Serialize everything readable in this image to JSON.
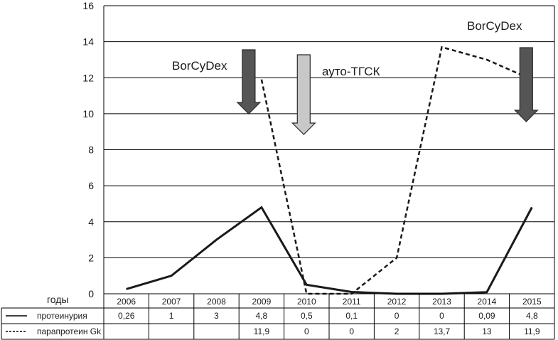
{
  "chart_data": {
    "type": "line",
    "title": "",
    "xlabel": "годы",
    "ylabel": "",
    "ylim": [
      0,
      16
    ],
    "yticks": [
      "0",
      "2",
      "4",
      "6",
      "8",
      "10",
      "12",
      "14",
      "16"
    ],
    "grid": true,
    "categories": [
      "2006",
      "2007",
      "2008",
      "2009",
      "2010",
      "2011",
      "2012",
      "2013",
      "2014",
      "2015"
    ],
    "series": [
      {
        "name": "протеинурия",
        "style": "solid",
        "values": [
          0.26,
          1,
          3,
          4.8,
          0.5,
          0.1,
          0,
          0,
          0.09,
          4.8
        ],
        "labels": [
          "0,26",
          "1",
          "3",
          "4,8",
          "0,5",
          "0,1",
          "0",
          "0",
          "0,09",
          "4,8"
        ]
      },
      {
        "name": "парапротеин Gk",
        "style": "dashed",
        "values": [
          null,
          null,
          null,
          11.9,
          0,
          0,
          2,
          13.7,
          13,
          11.9
        ],
        "labels": [
          "",
          "",
          "",
          "11,9",
          "0",
          "0",
          "2",
          "13,7",
          "13",
          "11,9"
        ]
      }
    ],
    "annotations": [
      {
        "text": "BorCyDex",
        "year": "2009",
        "arrow_color": "#555555"
      },
      {
        "text": "ауто-ТГСК",
        "year": "2010",
        "arrow_color": "#c8c8c8"
      },
      {
        "text": "BorCyDex",
        "year": "2015",
        "arrow_color": "#555555"
      }
    ],
    "colors": {
      "line": "#1a1a1a",
      "grid": "#000000",
      "dark_arrow": "#555555",
      "light_arrow": "#c8c8c8"
    }
  }
}
